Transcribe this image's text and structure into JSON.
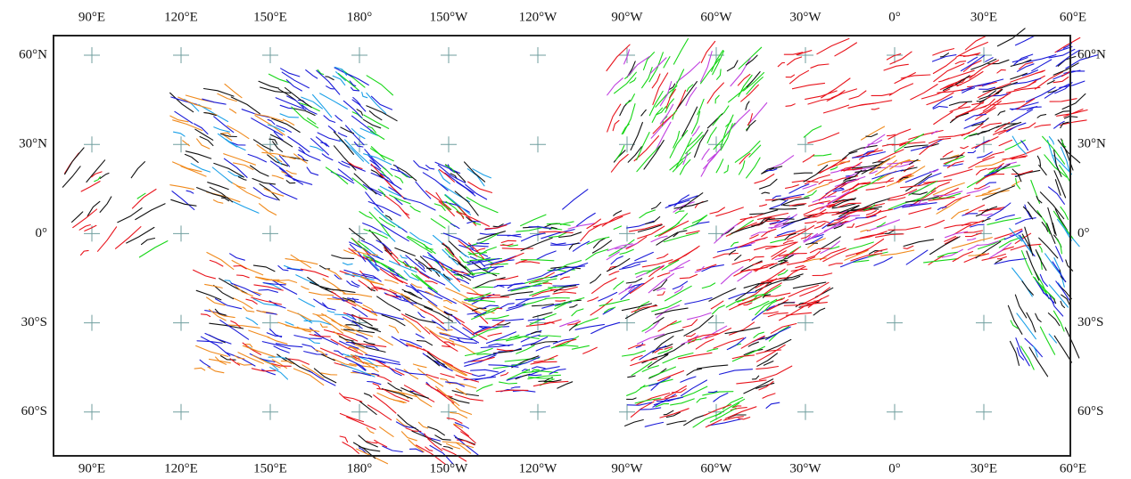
{
  "map": {
    "longitude_labels": [
      "90°E",
      "120°E",
      "150°E",
      "180°",
      "150°W",
      "120°W",
      "90°W",
      "60°W",
      "30°W",
      "0°",
      "30°E",
      "60°E"
    ],
    "latitude_labels": [
      "60°N",
      "30°N",
      "0°",
      "30°S",
      "60°S"
    ]
  }
}
